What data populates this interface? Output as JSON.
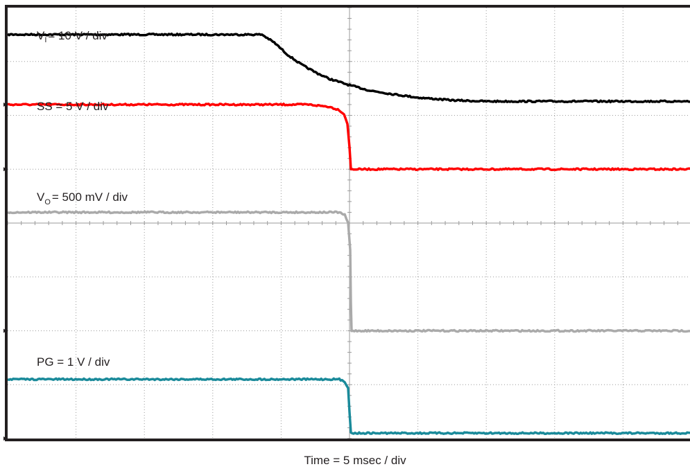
{
  "chart_data": {
    "type": "line",
    "title": "",
    "xlabel": "Time = 5 msec / div",
    "ylabel": "",
    "xlim": [
      0,
      10
    ],
    "ylim": [
      0,
      8
    ],
    "x_unit": "div",
    "y_unit": "div",
    "grid": true,
    "grid_style": "dotted",
    "colors": {
      "vi": "#000000",
      "ss": "#ff0000",
      "vo": "#aaaaaa",
      "pg": "#1a8a9a",
      "frame": "#231f20",
      "grid": "#9a9a9a"
    },
    "channel_labels": {
      "vi": {
        "main": "V",
        "sub": "I",
        "rest": "= 10 V / div"
      },
      "ss": {
        "text": "SS = 5 V / div"
      },
      "vo": {
        "main": "V",
        "sub": "O",
        "rest": "= 500 mV / div"
      },
      "pg": {
        "text": "PG = 1 V / div"
      }
    },
    "series": [
      {
        "key": "vi",
        "x": [
          0,
          3.72,
          3.9,
          4.1,
          4.3,
          4.5,
          4.7,
          5.0,
          5.3,
          5.6,
          6.0,
          6.5,
          7.0,
          8.0,
          9.0,
          10.0
        ],
        "y": [
          7.5,
          7.5,
          7.35,
          7.12,
          6.94,
          6.8,
          6.68,
          6.56,
          6.46,
          6.4,
          6.33,
          6.28,
          6.26,
          6.26,
          6.26,
          6.26
        ]
      },
      {
        "key": "ss",
        "x": [
          0,
          4.4,
          4.7,
          4.85,
          4.92,
          4.97,
          5.0,
          5.02,
          10.0
        ],
        "y": [
          6.2,
          6.2,
          6.16,
          6.1,
          6.02,
          5.85,
          5.4,
          5.0,
          5.0
        ]
      },
      {
        "key": "vo",
        "x": [
          0,
          4.85,
          4.93,
          4.98,
          5.01,
          5.02,
          5.03,
          10.0
        ],
        "y": [
          4.2,
          4.2,
          4.15,
          4.0,
          3.5,
          2.5,
          2.0,
          2.0
        ]
      },
      {
        "key": "pg",
        "x": [
          0,
          4.85,
          4.93,
          4.98,
          5.0,
          5.02,
          10.0
        ],
        "y": [
          1.1,
          1.1,
          1.05,
          0.95,
          0.5,
          0.1,
          0.1
        ]
      }
    ],
    "ground_markers": [
      {
        "key": "ss",
        "y": 5.0
      },
      {
        "key": "vi",
        "y": 6.2
      },
      {
        "key": "vo",
        "y": 2.0
      },
      {
        "key": "pg",
        "y": 0.0
      }
    ]
  }
}
